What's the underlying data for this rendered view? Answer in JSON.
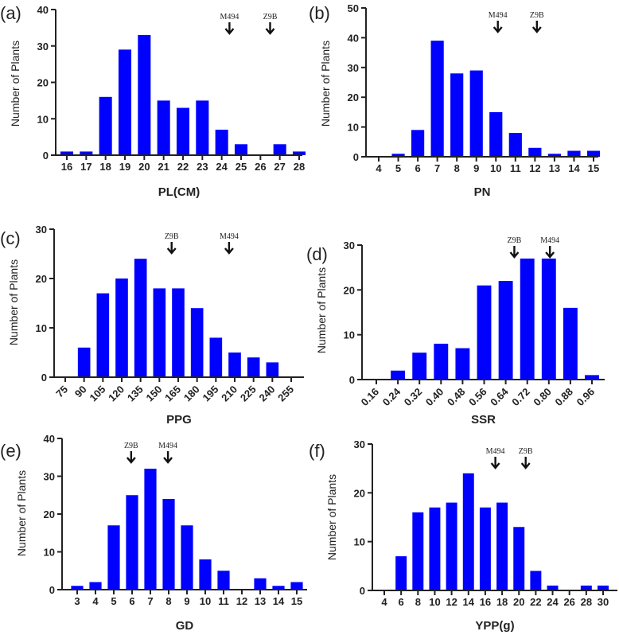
{
  "chart_data": [
    {
      "type": "bar",
      "panel_label": "(a)",
      "xlabel": "PL(CM)",
      "ylabel": "Number of Plants",
      "ylim": [
        0,
        40
      ],
      "yticks": [
        0,
        10,
        20,
        30,
        40
      ],
      "categories": [
        "16",
        "17",
        "18",
        "19",
        "20",
        "21",
        "22",
        "23",
        "24",
        "25",
        "26",
        "27",
        "28"
      ],
      "values": [
        1,
        1,
        16,
        29,
        33,
        15,
        13,
        15,
        7,
        3,
        0,
        3,
        1
      ],
      "rotated_ticks": false,
      "annotations": [
        {
          "label": "M494",
          "x_index": 8.4
        },
        {
          "label": "Z9B",
          "x_index": 10.5
        }
      ],
      "bar_color": "#0000ff",
      "grid": false
    },
    {
      "type": "bar",
      "panel_label": "(b)",
      "xlabel": "PN",
      "ylabel": "Number of Plants",
      "ylim": [
        0,
        50
      ],
      "yticks": [
        0,
        10,
        20,
        30,
        40,
        50
      ],
      "categories": [
        "4",
        "5",
        "6",
        "7",
        "8",
        "9",
        "10",
        "11",
        "12",
        "13",
        "14",
        "15"
      ],
      "values": [
        0,
        1,
        9,
        39,
        28,
        29,
        15,
        8,
        3,
        1,
        2,
        2
      ],
      "rotated_ticks": false,
      "annotations": [
        {
          "label": "M494",
          "x_index": 6.1
        },
        {
          "label": "Z9B",
          "x_index": 8.1
        }
      ],
      "bar_color": "#0000ff",
      "grid": false
    },
    {
      "type": "bar",
      "panel_label": "(c)",
      "xlabel": "PPG",
      "ylabel": "Number of Plants",
      "ylim": [
        0,
        30
      ],
      "yticks": [
        0,
        10,
        20,
        30
      ],
      "categories": [
        "75",
        "90",
        "105",
        "120",
        "135",
        "150",
        "165",
        "180",
        "195",
        "210",
        "225",
        "240",
        "255"
      ],
      "values": [
        0,
        6,
        17,
        20,
        24,
        18,
        18,
        14,
        8,
        5,
        4,
        3,
        0
      ],
      "rotated_ticks": true,
      "annotations": [
        {
          "label": "Z9B",
          "x_index": 5.65
        },
        {
          "label": "M494",
          "x_index": 8.7
        }
      ],
      "bar_color": "#0000ff",
      "grid": false
    },
    {
      "type": "bar",
      "panel_label": "(d)",
      "xlabel": "SSR",
      "ylabel": "Number of Plants",
      "ylim": [
        0,
        30
      ],
      "yticks": [
        0,
        10,
        20,
        30
      ],
      "categories": [
        "0.16",
        "0.24",
        "0.32",
        "0.40",
        "0.48",
        "0.56",
        "0.64",
        "0.72",
        "0.80",
        "0.88",
        "0.96"
      ],
      "values": [
        0,
        2,
        6,
        8,
        7,
        21,
        22,
        27,
        27,
        16,
        1
      ],
      "rotated_ticks": true,
      "annotations": [
        {
          "label": "Z9B",
          "x_index": 6.4
        },
        {
          "label": "M494",
          "x_index": 8.05
        }
      ],
      "bar_color": "#0000ff",
      "grid": false
    },
    {
      "type": "bar",
      "panel_label": "(e)",
      "xlabel": "GD",
      "ylabel": "Number of Plants",
      "ylim": [
        0,
        40
      ],
      "yticks": [
        0,
        10,
        20,
        30,
        40
      ],
      "categories": [
        "3",
        "4",
        "5",
        "6",
        "7",
        "8",
        "9",
        "10",
        "11",
        "12",
        "13",
        "14",
        "15"
      ],
      "values": [
        1,
        2,
        17,
        25,
        32,
        24,
        17,
        8,
        5,
        0,
        3,
        1,
        2
      ],
      "rotated_ticks": false,
      "annotations": [
        {
          "label": "Z9B",
          "x_index": 2.95
        },
        {
          "label": "M494",
          "x_index": 4.96
        }
      ],
      "bar_color": "#0000ff",
      "grid": false
    },
    {
      "type": "bar",
      "panel_label": "(f)",
      "xlabel": "YPP(g)",
      "ylabel": "Number of Plants",
      "ylim": [
        0,
        30
      ],
      "yticks": [
        0,
        10,
        20,
        30
      ],
      "categories": [
        "4",
        "6",
        "8",
        "10",
        "12",
        "14",
        "16",
        "18",
        "20",
        "22",
        "24",
        "26",
        "28",
        "30"
      ],
      "values": [
        0,
        7,
        16,
        17,
        18,
        24,
        17,
        18,
        13,
        4,
        1,
        0,
        1,
        1
      ],
      "rotated_ticks": false,
      "annotations": [
        {
          "label": "M494",
          "x_index": 6.6
        },
        {
          "label": "Z9B",
          "x_index": 8.4
        }
      ],
      "bar_color": "#0000ff",
      "grid": false
    }
  ]
}
